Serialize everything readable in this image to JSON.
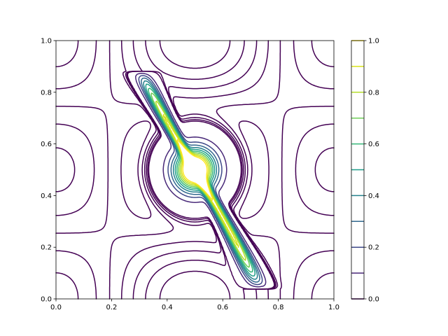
{
  "chart_data": {
    "type": "contour",
    "title": "",
    "xlabel": "",
    "ylabel": "",
    "xlim": [
      0,
      1
    ],
    "ylim": [
      0,
      1
    ],
    "x_ticks": [
      "0.0",
      "0.2",
      "0.4",
      "0.6",
      "0.8",
      "1.0"
    ],
    "y_ticks": [
      "0.0",
      "0.2",
      "0.4",
      "0.6",
      "0.8",
      "1.0"
    ],
    "grid": false,
    "colormap": "viridis",
    "levels": [
      0.0,
      0.1,
      0.2,
      0.3,
      0.4,
      0.5,
      0.6,
      0.7,
      0.8,
      0.9,
      1.0
    ],
    "level_colors": [
      "#440154",
      "#482878",
      "#3e4989",
      "#31688e",
      "#26828e",
      "#1f9e89",
      "#35b779",
      "#6ece58",
      "#b5de2b",
      "#d8e219",
      "#fde725"
    ],
    "colorbar": {
      "position": "right",
      "ticks": [
        "0.0",
        "0.2",
        "0.4",
        "0.6",
        "0.8",
        "1.0"
      ]
    },
    "features": [
      "high-valued narrow ridge running diagonally from about (0.3, 0.85) to (0.75, 0.05)",
      "empty square region around (0.5, 0.5) where field exceeds 1.0",
      "closed elliptical low-level loops centered near (0.5, 0.85), (0.9, 0.5) and (0.05, 0.5)",
      "nested arch-shaped contours below the center around (0.5, 0.25)"
    ]
  }
}
